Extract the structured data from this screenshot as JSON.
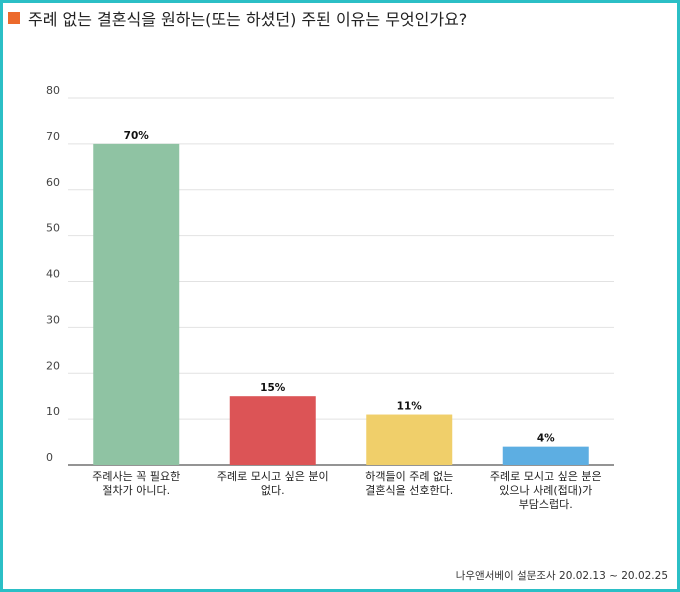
{
  "title": "주례 없는 결혼식을 원하는(또는 하셨던) 주된 이유는 무엇인가요?",
  "source": "나우앤서베이 설문조사 20.02.13 ~ 20.02.25",
  "colors": {
    "title_marker": "#ec6a2c",
    "frame": "#2bbfc6"
  },
  "chart_data": {
    "type": "bar",
    "title": "주례 없는 결혼식을 원하는(또는 하셨던) 주된 이유는 무엇인가요?",
    "categories": [
      [
        "주례사는 꼭 필요한",
        "절차가 아니다."
      ],
      [
        "주례로 모시고 싶은 분이",
        "없다."
      ],
      [
        "하객들이 주례 없는",
        "결혼식을 선호한다."
      ],
      [
        "주례로 모시고 싶은 분은",
        "있으나 사례(접대)가",
        "부담스럽다."
      ]
    ],
    "values": [
      70,
      15,
      11,
      4
    ],
    "value_labels": [
      "70%",
      "15%",
      "11%",
      "4%"
    ],
    "bar_colors": [
      "#8fc3a3",
      "#dc5456",
      "#f0cf6a",
      "#5daee2"
    ],
    "ylim": [
      0,
      80
    ],
    "yticks": [
      0,
      10,
      20,
      30,
      40,
      50,
      60,
      70,
      80
    ],
    "grid": true,
    "xlabel": "",
    "ylabel": ""
  }
}
